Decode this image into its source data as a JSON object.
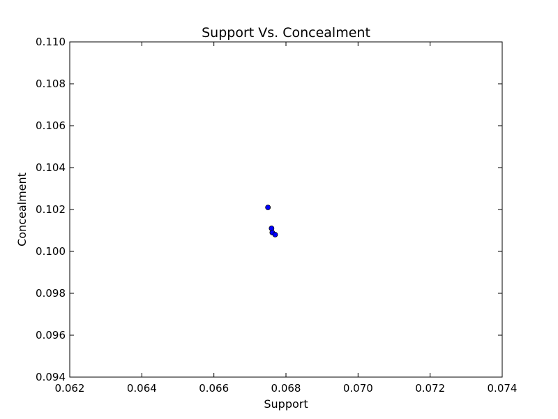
{
  "chart_data": {
    "type": "scatter",
    "title": "Support Vs. Concealment",
    "xlabel": "Support",
    "ylabel": "Concealment",
    "xlim": [
      0.062,
      0.074
    ],
    "ylim": [
      0.094,
      0.11
    ],
    "xticks": [
      "0.062",
      "0.064",
      "0.066",
      "0.068",
      "0.070",
      "0.072",
      "0.074"
    ],
    "yticks": [
      "0.094",
      "0.096",
      "0.098",
      "0.100",
      "0.102",
      "0.104",
      "0.106",
      "0.108",
      "0.110"
    ],
    "grid": false,
    "marker_color": "#0000ff",
    "series": [
      {
        "x": [
          0.0675,
          0.0676,
          0.06762,
          0.0677
        ],
        "y": [
          0.1021,
          0.1011,
          0.1009,
          0.1008
        ]
      }
    ]
  }
}
